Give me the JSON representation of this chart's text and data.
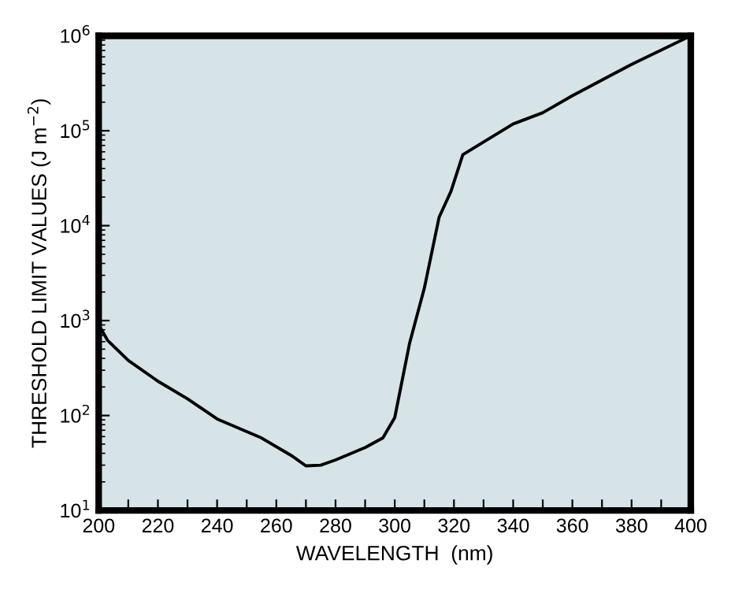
{
  "chart_data": {
    "type": "line",
    "xlabel": "WAVELENGTH  (nm)",
    "ylabel": "THRESHOLD LIMIT VALUES (J m$^{−2}$)",
    "x": [
      200,
      203,
      210,
      220,
      230,
      240,
      255,
      265,
      270,
      275,
      280,
      290,
      296,
      300,
      305,
      310,
      315,
      319,
      323,
      340,
      350,
      360,
      380,
      400
    ],
    "series": [
      {
        "color": "#000000",
        "values": [
          900,
          620,
          380,
          230,
          150,
          92,
          58,
          38,
          29.5,
          30,
          34,
          46,
          58,
          95,
          575,
          2200,
          12300,
          23000,
          56000,
          118000,
          155000,
          234000,
          500000,
          1000000
        ]
      }
    ],
    "log": "y",
    "xlim": [
      200,
      400
    ],
    "ylim": [
      10,
      1000000
    ],
    "xticks": [
      200,
      {
        "value": 210,
        "label": null
      },
      220,
      {
        "value": 230,
        "label": null
      },
      240,
      {
        "value": 250,
        "label": null
      },
      260,
      {
        "value": 270,
        "label": null
      },
      280,
      {
        "value": 290,
        "label": null
      },
      300,
      {
        "value": 310,
        "label": null
      },
      320,
      {
        "value": 330,
        "label": null
      },
      340,
      {
        "value": 350,
        "label": null
      },
      360,
      {
        "value": 370,
        "label": null
      },
      380,
      {
        "value": 390,
        "label": null
      },
      400
    ],
    "yticks": [
      {
        "value": 10,
        "label": "10$^{1}$"
      },
      {
        "value": 100,
        "label": "10$^{2}$"
      },
      {
        "value": 1000,
        "label": "10$^{3}$"
      },
      {
        "value": 10000,
        "label": "10$^{4}$"
      },
      {
        "value": 100000,
        "label": "10$^{5}$"
      },
      {
        "value": 1000000,
        "label": "10$^{6}$"
      }
    ],
    "grid": false,
    "legend": false,
    "marker": "none",
    "line_style": "solid"
  }
}
